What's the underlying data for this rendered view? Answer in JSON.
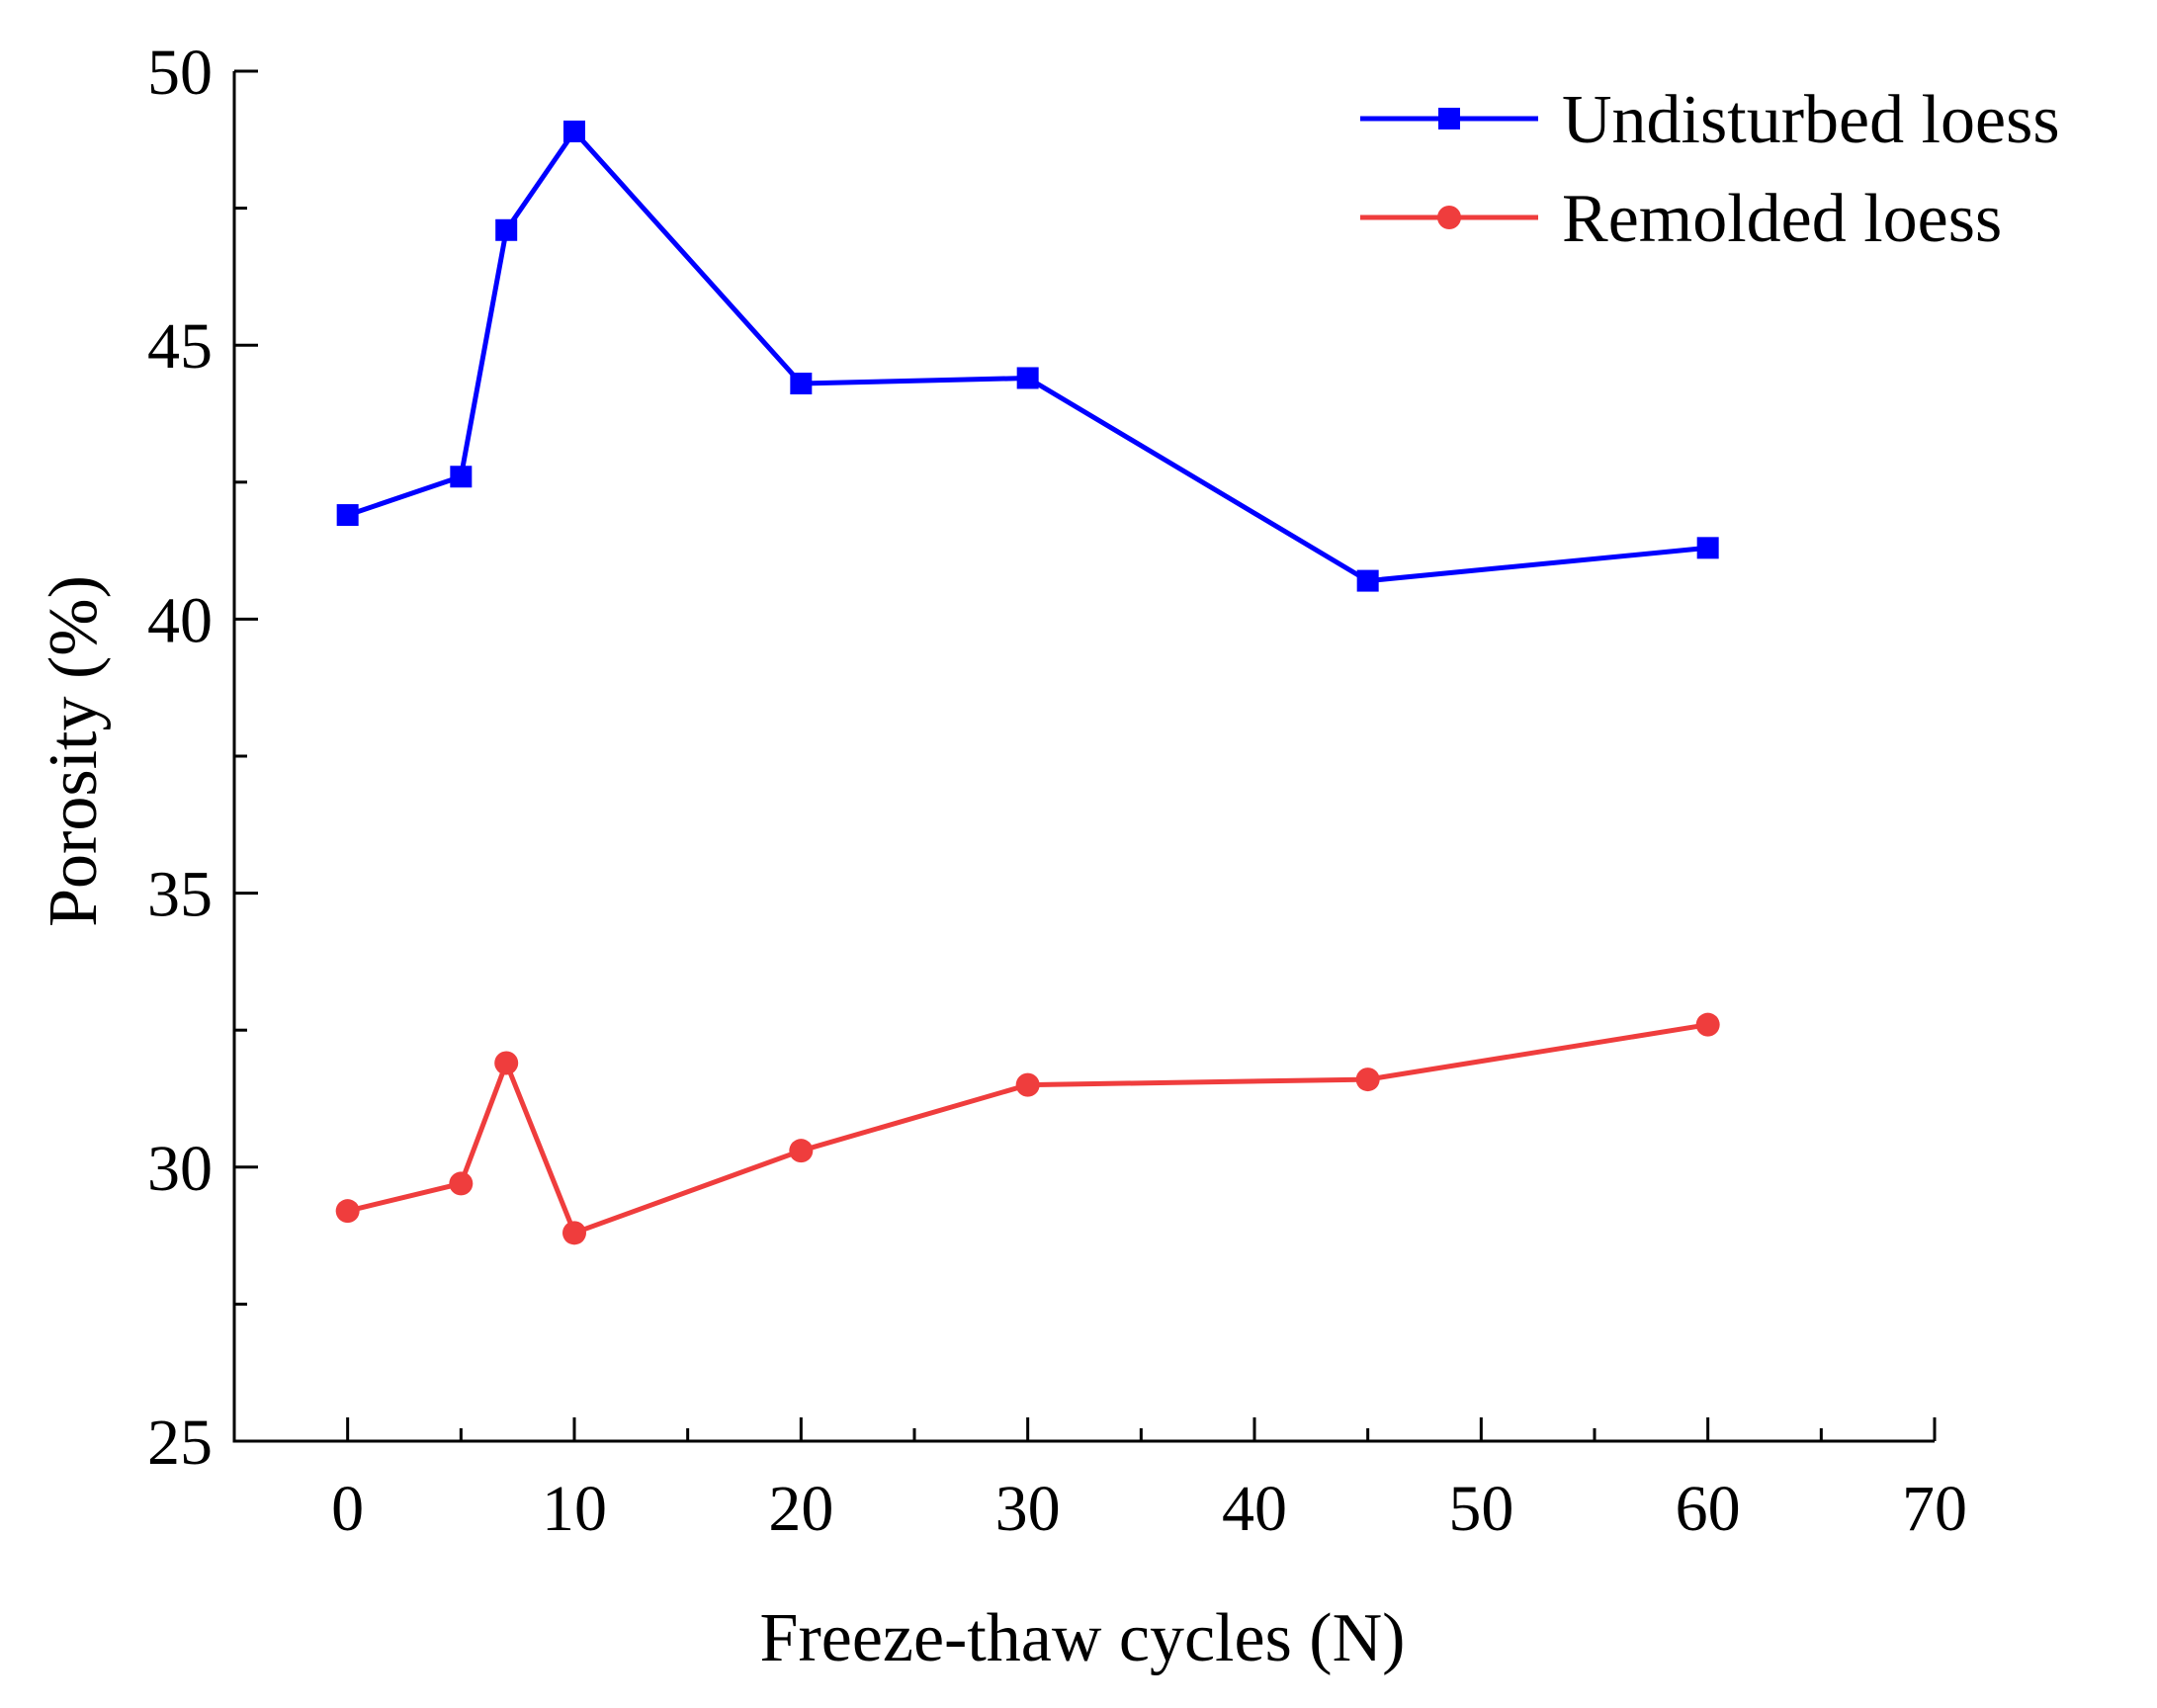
{
  "chart_data": {
    "type": "line",
    "title": "",
    "xlabel": "Freeze-thaw cycles (N)",
    "ylabel": "Porosity (%)",
    "xlim": [
      -5,
      70
    ],
    "ylim": [
      25,
      50
    ],
    "xticks": [
      0,
      10,
      20,
      30,
      40,
      50,
      60,
      70
    ],
    "xticks_minor": [
      5,
      15,
      25,
      35,
      45,
      55,
      65
    ],
    "yticks": [
      25,
      30,
      35,
      40,
      45,
      50
    ],
    "yticks_minor": [
      27.5,
      32.5,
      37.5,
      42.5,
      47.5
    ],
    "grid": false,
    "legend_position": "top-right",
    "series": [
      {
        "name": "Undisturbed loess",
        "color": "#0000ff",
        "marker": "square",
        "x": [
          0,
          5,
          7,
          10,
          20,
          30,
          45,
          60
        ],
        "y": [
          41.9,
          42.6,
          47.1,
          48.9,
          44.3,
          44.4,
          40.7,
          41.3
        ]
      },
      {
        "name": "Remolded loess",
        "color": "#ef3d3d",
        "marker": "circle",
        "x": [
          0,
          5,
          7,
          10,
          20,
          30,
          45,
          60
        ],
        "y": [
          29.2,
          29.7,
          31.9,
          28.8,
          30.3,
          31.5,
          31.6,
          32.6
        ]
      }
    ]
  }
}
